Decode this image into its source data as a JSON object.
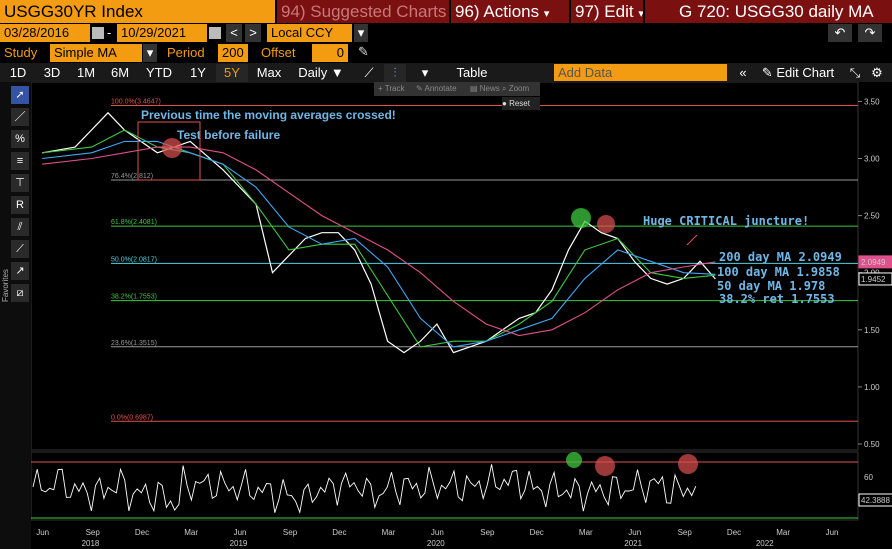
{
  "header": {
    "ticker": "USGG30YR Index",
    "menu_suggested": "94) Suggested Charts",
    "menu_actions": "96) Actions",
    "menu_edit": "97) Edit",
    "title_right": "G 720: USGG30 daily MA"
  },
  "controls": {
    "start_date": "03/28/2016",
    "end_date": "10/29/2021",
    "currency": "Local CCY",
    "study_label": "Study",
    "study_value": "Simple MA",
    "period_label": "Period",
    "period_value": "200",
    "offset_label": "Offset",
    "offset_value": "0"
  },
  "toolbar": {
    "ranges": [
      "1D",
      "3D",
      "1M",
      "6M",
      "YTD",
      "1Y",
      "5Y",
      "Max"
    ],
    "active_range": "5Y",
    "frequency": "Daily",
    "table_label": "Table",
    "add_data_placeholder": "Add Data",
    "edit_chart_label": "Edit Chart"
  },
  "chart_toolbar": {
    "tools": [
      "Track",
      "Annotate",
      "News",
      "Zoom"
    ],
    "reset": "Reset"
  },
  "side_panel_label": "Favorites",
  "chart_data": {
    "type": "line",
    "series": [
      {
        "name": "USGG30YR",
        "color": "#ffffff",
        "x": [
          "2018-06",
          "2018-08",
          "2018-10",
          "2018-11",
          "2019-01",
          "2019-03",
          "2019-05",
          "2019-07",
          "2019-08",
          "2019-09",
          "2019-10",
          "2019-11",
          "2019-12",
          "2020-01",
          "2020-02",
          "2020-03",
          "2020-04",
          "2020-05",
          "2020-06",
          "2020-07",
          "2020-08",
          "2020-09",
          "2020-10",
          "2020-11",
          "2020-12",
          "2021-01",
          "2021-02",
          "2021-03",
          "2021-04",
          "2021-05",
          "2021-06",
          "2021-07",
          "2021-08",
          "2021-09",
          "2021-10",
          "2021-10-29"
        ],
        "values": [
          3.05,
          3.1,
          3.4,
          3.25,
          3.05,
          3.15,
          2.9,
          2.6,
          2.0,
          2.15,
          2.3,
          2.35,
          2.35,
          2.2,
          1.9,
          1.4,
          1.3,
          1.4,
          1.55,
          1.3,
          1.35,
          1.4,
          1.5,
          1.6,
          1.65,
          1.85,
          2.2,
          2.45,
          2.35,
          2.3,
          2.1,
          1.95,
          1.9,
          1.95,
          2.1,
          1.9452
        ]
      },
      {
        "name": "50 day MA",
        "color": "#3ec83e",
        "x": [
          "2018-06",
          "2018-09",
          "2018-11",
          "2019-01",
          "2019-03",
          "2019-05",
          "2019-07",
          "2019-09",
          "2019-11",
          "2020-01",
          "2020-03",
          "2020-05",
          "2020-07",
          "2020-09",
          "2020-11",
          "2021-01",
          "2021-03",
          "2021-05",
          "2021-07",
          "2021-09",
          "2021-10-29"
        ],
        "values": [
          3.05,
          3.1,
          3.25,
          3.1,
          3.05,
          2.95,
          2.6,
          2.2,
          2.25,
          2.25,
          1.8,
          1.35,
          1.4,
          1.4,
          1.55,
          1.75,
          2.2,
          2.3,
          2.0,
          1.95,
          1.978
        ]
      },
      {
        "name": "100 day MA",
        "color": "#3fa8f0",
        "x": [
          "2018-06",
          "2018-09",
          "2018-11",
          "2019-01",
          "2019-03",
          "2019-05",
          "2019-07",
          "2019-09",
          "2019-11",
          "2020-01",
          "2020-03",
          "2020-05",
          "2020-07",
          "2020-09",
          "2020-11",
          "2021-01",
          "2021-03",
          "2021-05",
          "2021-07",
          "2021-09",
          "2021-10-29"
        ],
        "values": [
          3.0,
          3.05,
          3.15,
          3.15,
          3.05,
          2.95,
          2.75,
          2.4,
          2.25,
          2.3,
          2.05,
          1.6,
          1.35,
          1.4,
          1.5,
          1.6,
          1.95,
          2.2,
          2.1,
          2.0,
          1.9858
        ]
      },
      {
        "name": "200 day MA",
        "color": "#e0508a",
        "x": [
          "2018-06",
          "2018-09",
          "2018-11",
          "2019-01",
          "2019-03",
          "2019-05",
          "2019-07",
          "2019-09",
          "2019-11",
          "2020-01",
          "2020-03",
          "2020-05",
          "2020-07",
          "2020-09",
          "2020-11",
          "2021-01",
          "2021-03",
          "2021-05",
          "2021-07",
          "2021-09",
          "2021-10-29"
        ],
        "values": [
          2.95,
          3.0,
          3.05,
          3.1,
          3.1,
          3.05,
          2.9,
          2.7,
          2.5,
          2.35,
          2.2,
          2.0,
          1.75,
          1.55,
          1.45,
          1.5,
          1.65,
          1.85,
          2.0,
          2.05,
          2.0949
        ]
      }
    ],
    "xlabels": [
      {
        "label": "Jun",
        "x": "2018-06"
      },
      {
        "label": "Sep",
        "x": "2018-09"
      },
      {
        "label": "Dec",
        "x": "2018-12"
      },
      {
        "label": "Mar",
        "x": "2019-03"
      },
      {
        "label": "Jun",
        "x": "2019-06"
      },
      {
        "label": "Sep",
        "x": "2019-09"
      },
      {
        "label": "Dec",
        "x": "2019-12"
      },
      {
        "label": "Mar",
        "x": "2020-03"
      },
      {
        "label": "Jun",
        "x": "2020-06"
      },
      {
        "label": "Sep",
        "x": "2020-09"
      },
      {
        "label": "Dec",
        "x": "2020-12"
      },
      {
        "label": "Mar",
        "x": "2021-03"
      },
      {
        "label": "Jun",
        "x": "2021-06"
      },
      {
        "label": "Sep",
        "x": "2021-09"
      },
      {
        "label": "Dec",
        "x": "2021-12"
      },
      {
        "label": "Mar",
        "x": "2022-03"
      },
      {
        "label": "Jun",
        "x": "2022-06"
      }
    ],
    "years": [
      {
        "label": "2018",
        "x": "2018-09"
      },
      {
        "label": "2019",
        "x": "2019-06"
      },
      {
        "label": "2020",
        "x": "2020-06"
      },
      {
        "label": "2021",
        "x": "2021-06"
      },
      {
        "label": "2022",
        "x": "2022-02"
      }
    ],
    "ylim": [
      0.5,
      3.6
    ],
    "yticks": [
      "3.50",
      "3.00",
      "2.50",
      "2.00",
      "1.50",
      "1.00",
      "0.50"
    ],
    "fib_levels": [
      {
        "label": "100.0%(3.4647)",
        "value": 3.4647,
        "color": "#e05050"
      },
      {
        "label": "76.4%(2.812)",
        "value": 2.812,
        "color": "#999999"
      },
      {
        "label": "61.8%(2.4081)",
        "value": 2.4081,
        "color": "#3ec83e"
      },
      {
        "label": "50.0%(2.0817)",
        "value": 2.0817,
        "color": "#4fd2e0"
      },
      {
        "label": "38.2%(1.7553)",
        "value": 1.7553,
        "color": "#3ec83e"
      },
      {
        "label": "23.6%(1.3515)",
        "value": 1.3515,
        "color": "#999999"
      },
      {
        "label": "0.0%(0.6987)",
        "value": 0.6987,
        "color": "#e05050"
      }
    ],
    "last_labels": [
      {
        "text": "2.0949",
        "value": 2.0949,
        "color": "#e0508a"
      },
      {
        "text": "1.9452",
        "value": 1.9452,
        "color": "#ffffff"
      }
    ],
    "annotations": [
      {
        "text": "Previous time the moving averages crossed!"
      },
      {
        "text": "Test before failure"
      },
      {
        "text": "Huge CRITICAL juncture!"
      },
      {
        "text": "200 day MA 2.0949"
      },
      {
        "text": "100 day MA 1.9858"
      },
      {
        "text": "50 day MA 1.978"
      },
      {
        "text": "38.2% ret 1.7553"
      }
    ],
    "oscillator": {
      "last_value": "42.3888",
      "ytick": "60"
    }
  }
}
